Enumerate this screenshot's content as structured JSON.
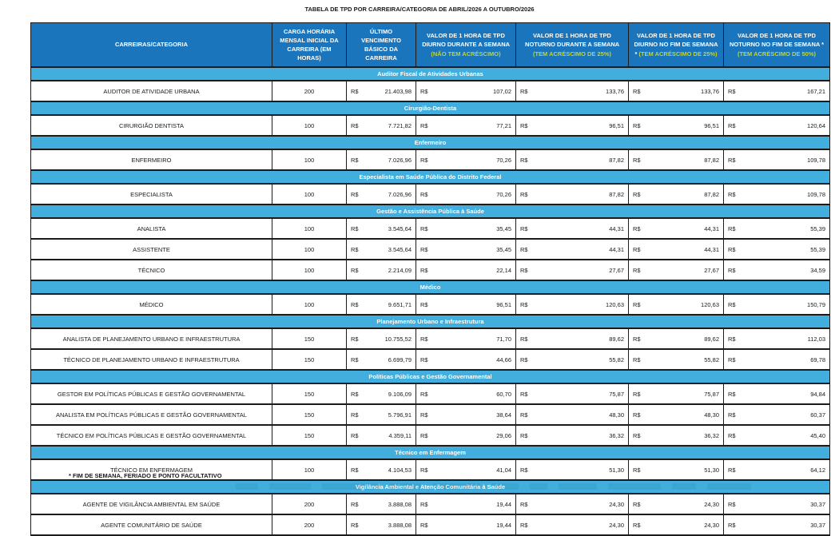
{
  "page": {
    "title": "TABELA DE TPD POR CARREIRA/CATEGORIA DE ABRIL/2026 A OUTUBRO/2026",
    "footnote": "* FIM DE SEMANA, FERIADO E PONTO FACULTATIVO"
  },
  "colors": {
    "header_bg": "#1B75BC",
    "section_bg": "#41AEDD",
    "header_accent_text": "#C3D42B",
    "border": "#1B1B1B"
  },
  "table": {
    "currency_symbol": "R$",
    "headers": [
      {
        "id": "carreiras-categoria",
        "label": "CARREIRAS/CATEGORIA",
        "accent": ""
      },
      {
        "id": "carga-horaria",
        "label": "CARGA HORÁRIA MENSAL INICIAL DA CARREIRA (EM HORAS)",
        "accent": ""
      },
      {
        "id": "ultimo-vencimento",
        "label": "ÚLTIMO VENCIMENTO BÁSICO DA CARREIRA",
        "accent": ""
      },
      {
        "id": "tpd-diurno-semana",
        "label": "VALOR DE 1 HORA DE TPD DIURNO DURANTE A SEMANA",
        "accent": "(NÃO TEM ACRÉSCIMO)"
      },
      {
        "id": "tpd-noturno-semana",
        "label": "VALOR DE 1 HORA DE TPD NOTURNO DURANTE A SEMANA",
        "accent": "(TEM ACRÉSCIMO DE 25%)"
      },
      {
        "id": "tpd-diurno-fim-de-semana",
        "label": "VALOR DE 1 HORA DE TPD DIURNO NO FIM DE SEMANA *",
        "accent": "(TEM ACRÉSCIMO DE 25%)"
      },
      {
        "id": "tpd-noturno-fim-de-semana",
        "label": "VALOR DE 1 HORA DE TPD NOTURNO NO FIM DE SEMANA *",
        "accent": "(TEM ACRÉSCIMO DE 50%)"
      }
    ],
    "sections": [
      {
        "name": "Auditor Fiscal de Atividades Urbanas",
        "rows": [
          {
            "career": "AUDITOR DE ATIVIDADE URBANA",
            "hours": "200",
            "values": [
              "21.403,98",
              "107,02",
              "133,76",
              "133,76",
              "167,21"
            ]
          }
        ]
      },
      {
        "name": "Cirurgião-Dentista",
        "rows": [
          {
            "career": "CIRURGIÃO DENTISTA",
            "hours": "100",
            "values": [
              "7.721,82",
              "77,21",
              "96,51",
              "96,51",
              "120,64"
            ]
          }
        ]
      },
      {
        "name": "Enfermeiro",
        "rows": [
          {
            "career": "ENFERMEIRO",
            "hours": "100",
            "values": [
              "7.026,96",
              "70,26",
              "87,82",
              "87,82",
              "109,78"
            ]
          }
        ]
      },
      {
        "name": "Especialista em Saúde Pública do Distrito Federal",
        "rows": [
          {
            "career": "ESPECIALISTA",
            "hours": "100",
            "values": [
              "7.026,96",
              "70,26",
              "87,82",
              "87,82",
              "109,78"
            ]
          }
        ]
      },
      {
        "name": "Gestão e Assistência Pública à Saúde",
        "rows": [
          {
            "career": "ANALISTA",
            "hours": "100",
            "values": [
              "3.545,64",
              "35,45",
              "44,31",
              "44,31",
              "55,39"
            ]
          },
          {
            "career": "ASSISTENTE",
            "hours": "100",
            "values": [
              "3.545,64",
              "35,45",
              "44,31",
              "44,31",
              "55,39"
            ]
          },
          {
            "career": "TÉCNICO",
            "hours": "100",
            "values": [
              "2.214,09",
              "22,14",
              "27,67",
              "27,67",
              "34,59"
            ]
          }
        ]
      },
      {
        "name": "Médico",
        "rows": [
          {
            "career": "MÉDICO",
            "hours": "100",
            "values": [
              "9.651,71",
              "96,51",
              "120,63",
              "120,63",
              "150,79"
            ]
          }
        ]
      },
      {
        "name": "Planejamento Urbano e Infraestrutura",
        "rows": [
          {
            "career": "ANALISTA DE PLANEJAMENTO URBANO E INFRAESTRUTURA",
            "hours": "150",
            "values": [
              "10.755,52",
              "71,70",
              "89,62",
              "89,62",
              "112,03"
            ]
          },
          {
            "career": "TÉCNICO DE PLANEJAMENTO URBANO E INFRAESTRUTURA",
            "hours": "150",
            "values": [
              "6.699,79",
              "44,66",
              "55,82",
              "55,82",
              "69,78"
            ]
          }
        ]
      },
      {
        "name": "Políticas Públicas e Gestão Governamental",
        "rows": [
          {
            "career": "GESTOR EM POLÍTICAS PÚBLICAS E GESTÃO GOVERNAMENTAL",
            "hours": "150",
            "values": [
              "9.106,09",
              "60,70",
              "75,87",
              "75,87",
              "94,84"
            ]
          },
          {
            "career": "ANALISTA EM POLÍTICAS PÚBLICAS E GESTÃO GOVERNAMENTAL",
            "hours": "150",
            "values": [
              "5.796,91",
              "38,64",
              "48,30",
              "48,30",
              "60,37"
            ]
          },
          {
            "career": "TÉCNICO EM POLÍTICAS PÚBLICAS E GESTÃO GOVERNAMENTAL",
            "hours": "150",
            "values": [
              "4.359,11",
              "29,06",
              "36,32",
              "36,32",
              "45,40"
            ]
          }
        ]
      },
      {
        "name": "Técnico em Enfermagem",
        "rows": [
          {
            "career": "TÉCNICO EM ENFERMAGEM",
            "hours": "100",
            "values": [
              "4.104,53",
              "41,04",
              "51,30",
              "51,30",
              "64,12"
            ]
          }
        ]
      },
      {
        "name": "Vigilância Ambiental e Atenção Comunitária à Saúde",
        "rows": [
          {
            "career": "AGENTE DE VIGILÂNCIA AMBIENTAL EM SAÚDE",
            "hours": "200",
            "values": [
              "3.888,08",
              "19,44",
              "24,30",
              "24,30",
              "30,37"
            ]
          },
          {
            "career": "AGENTE COMUNITÁRIO DE SAÚDE",
            "hours": "200",
            "values": [
              "3.888,08",
              "19,44",
              "24,30",
              "24,30",
              "30,37"
            ]
          }
        ]
      }
    ]
  }
}
